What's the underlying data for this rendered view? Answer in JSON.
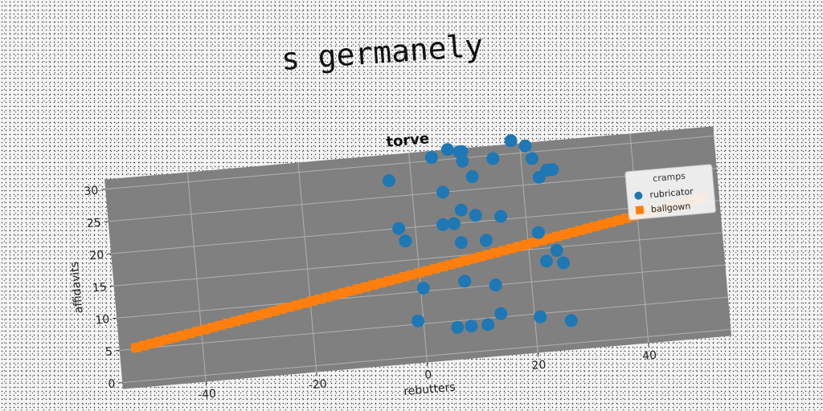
{
  "suptitle": "s germanely",
  "chart_data": {
    "type": "scatter",
    "title": "torve",
    "xlabel": "rebutters",
    "ylabel": "affidavits",
    "xlim": [
      -55,
      55
    ],
    "ylim": [
      -1,
      31.5
    ],
    "xticks": [
      -40,
      -20,
      0,
      20,
      40
    ],
    "yticks": [
      0,
      5,
      10,
      15,
      20,
      25,
      30
    ],
    "grid": true,
    "legend": {
      "title": "cramps",
      "position": "right"
    },
    "series": [
      {
        "name": "rubricator",
        "marker": "circle",
        "color": "#1f77b4",
        "points": [
          [
            -4,
            27.5
          ],
          [
            -3,
            20
          ],
          [
            -2,
            18
          ],
          [
            4,
            30.5
          ],
          [
            5,
            20
          ],
          [
            5.5,
            25
          ],
          [
            7,
            20
          ],
          [
            8,
            17
          ],
          [
            8.5,
            22
          ],
          [
            7,
            31.5
          ],
          [
            9,
            31
          ],
          [
            9.5,
            31
          ],
          [
            9.5,
            29.5
          ],
          [
            11,
            21
          ],
          [
            11,
            27
          ],
          [
            12.5,
            17
          ],
          [
            15,
            29.5
          ],
          [
            15.5,
            20.5
          ],
          [
            18.5,
            32
          ],
          [
            21,
            31
          ],
          [
            22,
            29
          ],
          [
            23,
            26
          ],
          [
            24.5,
            27
          ],
          [
            25.5,
            27
          ],
          [
            22,
            17.5
          ],
          [
            25,
            14.5
          ],
          [
            23,
            13
          ],
          [
            26,
            12.5
          ],
          [
            0.5,
            10.5
          ],
          [
            8,
            11
          ],
          [
            13.5,
            10
          ],
          [
            -1,
            5.5
          ],
          [
            6,
            4
          ],
          [
            8.5,
            4
          ],
          [
            11.5,
            4
          ],
          [
            14,
            5.5
          ],
          [
            21,
            4.5
          ],
          [
            26.5,
            3.5
          ]
        ]
      },
      {
        "name": "ballgown",
        "marker": "square",
        "color": "#ff7f0e",
        "x_range": [
          -52,
          52
        ],
        "y_range": [
          5.2,
          20.6
        ],
        "point_count": 75
      }
    ]
  },
  "colors": {
    "plot_bg": "#808080",
    "grid": "#b0b0b0"
  }
}
